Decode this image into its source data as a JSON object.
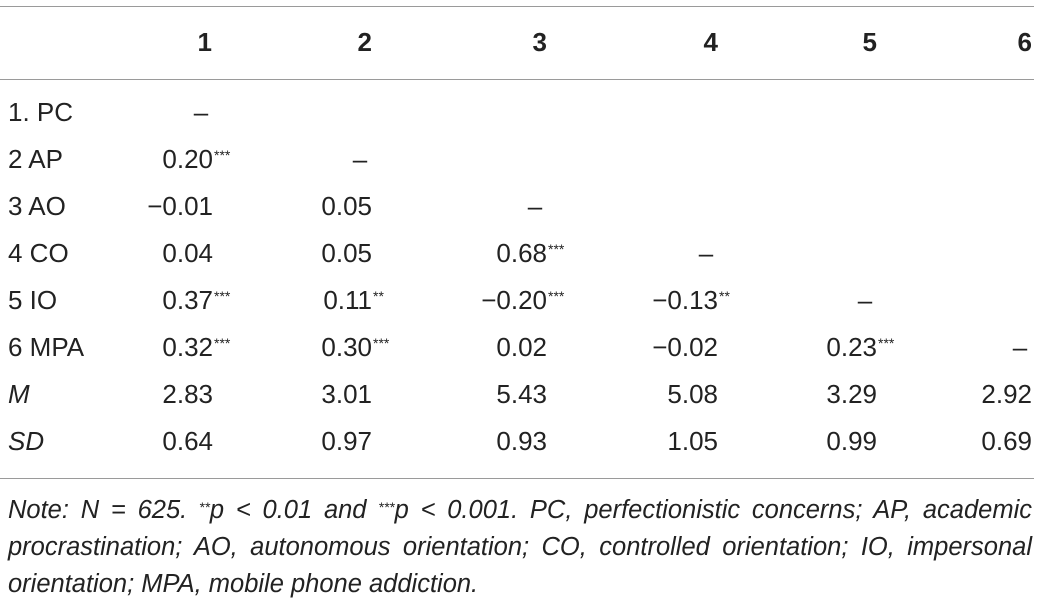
{
  "columns": [
    "1",
    "2",
    "3",
    "4",
    "5",
    "6"
  ],
  "rows": [
    {
      "label": "1. PC",
      "italic": false,
      "cells": [
        {
          "v": "–",
          "s": ""
        },
        {
          "v": "",
          "s": ""
        },
        {
          "v": "",
          "s": ""
        },
        {
          "v": "",
          "s": ""
        },
        {
          "v": "",
          "s": ""
        },
        {
          "v": "",
          "s": ""
        }
      ]
    },
    {
      "label": "2 AP",
      "italic": false,
      "cells": [
        {
          "v": "0.20",
          "s": "***"
        },
        {
          "v": "–",
          "s": ""
        },
        {
          "v": "",
          "s": ""
        },
        {
          "v": "",
          "s": ""
        },
        {
          "v": "",
          "s": ""
        },
        {
          "v": "",
          "s": ""
        }
      ]
    },
    {
      "label": "3 AO",
      "italic": false,
      "cells": [
        {
          "v": "−0.01",
          "s": ""
        },
        {
          "v": "0.05",
          "s": ""
        },
        {
          "v": "–",
          "s": ""
        },
        {
          "v": "",
          "s": ""
        },
        {
          "v": "",
          "s": ""
        },
        {
          "v": "",
          "s": ""
        }
      ]
    },
    {
      "label": "4 CO",
      "italic": false,
      "cells": [
        {
          "v": "0.04",
          "s": ""
        },
        {
          "v": "0.05",
          "s": ""
        },
        {
          "v": "0.68",
          "s": "***"
        },
        {
          "v": "–",
          "s": ""
        },
        {
          "v": "",
          "s": ""
        },
        {
          "v": "",
          "s": ""
        }
      ]
    },
    {
      "label": "5 IO",
      "italic": false,
      "cells": [
        {
          "v": "0.37",
          "s": "***"
        },
        {
          "v": "0.11",
          "s": "**"
        },
        {
          "v": "−0.20",
          "s": "***"
        },
        {
          "v": "−0.13",
          "s": "**"
        },
        {
          "v": "–",
          "s": ""
        },
        {
          "v": "",
          "s": ""
        }
      ]
    },
    {
      "label": "6 MPA",
      "italic": false,
      "cells": [
        {
          "v": "0.32",
          "s": "***"
        },
        {
          "v": "0.30",
          "s": "***"
        },
        {
          "v": "0.02",
          "s": ""
        },
        {
          "v": "−0.02",
          "s": ""
        },
        {
          "v": "0.23",
          "s": "***"
        },
        {
          "v": "–",
          "s": ""
        }
      ]
    },
    {
      "label": "M",
      "italic": true,
      "cells": [
        {
          "v": "2.83",
          "s": ""
        },
        {
          "v": "3.01",
          "s": ""
        },
        {
          "v": "5.43",
          "s": ""
        },
        {
          "v": "5.08",
          "s": ""
        },
        {
          "v": "3.29",
          "s": ""
        },
        {
          "v": "2.92",
          "s": ""
        }
      ]
    },
    {
      "label": "SD",
      "italic": true,
      "cells": [
        {
          "v": "0.64",
          "s": ""
        },
        {
          "v": "0.97",
          "s": ""
        },
        {
          "v": "0.93",
          "s": ""
        },
        {
          "v": "1.05",
          "s": ""
        },
        {
          "v": "0.99",
          "s": ""
        },
        {
          "v": "0.69",
          "s": ""
        }
      ]
    }
  ],
  "note": {
    "part1": "Note: N = 625. ",
    "sup1": "**",
    "part2": "p < 0.01 and ",
    "sup2": "***",
    "part3": "p < 0.001. PC, perfectionistic concerns; AP, academic procrastination; AO, autonomous orientation; CO, controlled orientation; IO, impersonal orientation; MPA, mobile phone addiction."
  }
}
